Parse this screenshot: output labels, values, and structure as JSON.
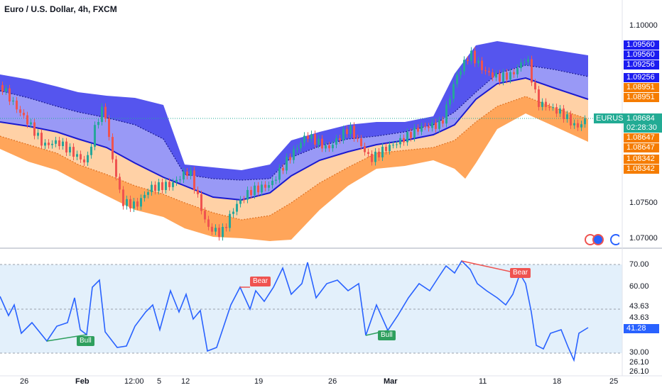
{
  "header": {
    "title": "Euro / U.S. Dollar, 4h, FXCM"
  },
  "price_axis": {
    "ticks": [
      "1.10000",
      "1.07500",
      "1.07000"
    ],
    "tags": [
      {
        "text": "1.09560",
        "color": "#1c1cf0"
      },
      {
        "text": "1.09560",
        "color": "#1c1cf0"
      },
      {
        "text": "1.09256",
        "color": "#1c1cf0"
      },
      {
        "text": "1.09256",
        "color": "#1c1cf0"
      },
      {
        "text": "1.08951",
        "color": "#f57c00"
      },
      {
        "text": "1.08951",
        "color": "#f57c00"
      },
      {
        "text": "1.08647",
        "color": "#f57c00"
      },
      {
        "text": "1.08647",
        "color": "#f57c00"
      },
      {
        "text": "1.08342",
        "color": "#f57c00"
      },
      {
        "text": "1.08342",
        "color": "#f57c00"
      }
    ],
    "symbol_tag": {
      "label": "EURUSD",
      "price": "1.08684",
      "countdown": "02:28:30",
      "color": "#22ab94"
    }
  },
  "rsi_axis": {
    "ticks": [
      "70.00",
      "60.00",
      "43.63",
      "43.63",
      "30.00",
      "26.10",
      "26.10"
    ],
    "current": {
      "text": "41.28",
      "color": "#2962ff"
    }
  },
  "time_axis": [
    "26",
    "Feb",
    "12:00",
    "5",
    "12",
    "19",
    "26",
    "Mar",
    "11",
    "18",
    "25"
  ],
  "divergences": {
    "bull_label": "Bull",
    "bear_label": "Bear",
    "bull_color": "#2e9f5e",
    "bear_color": "#ef5350"
  },
  "colors": {
    "up": "#26a69a",
    "down": "#ef5350",
    "upper_band": "#3c3cf0",
    "lower_band": "#ff9a3c",
    "rsi_line": "#2962ff",
    "rsi_band": "#e3f0fb"
  },
  "icons": [
    "flag-us-icon",
    "flag-eu-icon",
    "settings-circle-icon"
  ]
}
